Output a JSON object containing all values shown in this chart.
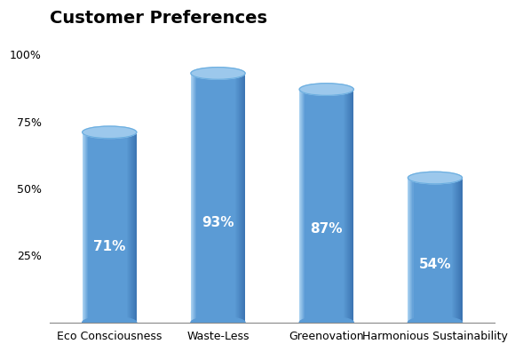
{
  "title": "Customer Preferences",
  "categories": [
    "Eco Consciousness",
    "Waste-Less",
    "Greenovation",
    "Harmonious Sustainability"
  ],
  "values": [
    71,
    93,
    87,
    54
  ],
  "labels": [
    "71%",
    "93%",
    "87%",
    "54%"
  ],
  "bar_color_main": "#5B9BD5",
  "bar_color_light": "#A8D0F0",
  "bar_color_dark": "#3A72B0",
  "cylinder_top_color": "#9CC8EC",
  "cylinder_top_edge": "#6AAEE0",
  "text_color": "#FFFFFF",
  "background_color": "#FFFFFF",
  "ylim": [
    0,
    108
  ],
  "yticks": [
    25,
    50,
    75,
    100
  ],
  "ytick_labels": [
    "25%",
    "50%",
    "75%",
    "100%"
  ],
  "title_fontsize": 14,
  "label_fontsize": 11,
  "tick_fontsize": 9,
  "bar_width": 0.5,
  "figsize": [
    5.89,
    3.96
  ],
  "dpi": 100
}
